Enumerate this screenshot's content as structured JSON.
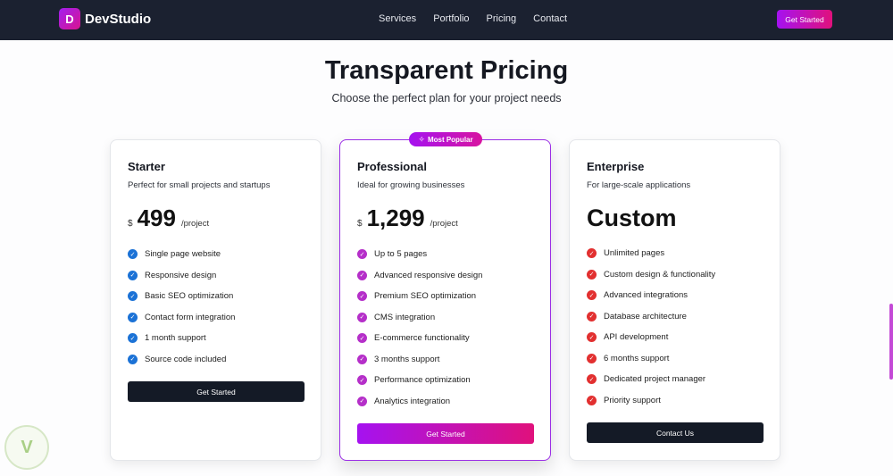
{
  "nav": {
    "logo_letter": "D",
    "brand": "DevStudio",
    "links": [
      "Services",
      "Portfolio",
      "Pricing",
      "Contact"
    ],
    "cta": "Get Started"
  },
  "hero": {
    "title": "Transparent Pricing",
    "subtitle": "Choose the perfect plan for your project needs"
  },
  "badge": "Most Popular",
  "colors": {
    "nav_bg": "#1b2130",
    "accent_start": "#a512f0",
    "accent_end": "#e0117c",
    "starter_check": "#1b72d6",
    "professional_check": "#b52fc9",
    "enterprise_check": "#e23030"
  },
  "plans": [
    {
      "name": "Starter",
      "description": "Perfect for small projects and startups",
      "currency": "$",
      "amount": "499",
      "period": "/project",
      "features": [
        "Single page website",
        "Responsive design",
        "Basic SEO optimization",
        "Contact form integration",
        "1 month support",
        "Source code included"
      ],
      "button": "Get Started"
    },
    {
      "name": "Professional",
      "description": "Ideal for growing businesses",
      "currency": "$",
      "amount": "1,299",
      "period": "/project",
      "features": [
        "Up to 5 pages",
        "Advanced responsive design",
        "Premium SEO optimization",
        "CMS integration",
        "E-commerce functionality",
        "3 months support",
        "Performance optimization",
        "Analytics integration"
      ],
      "button": "Get Started"
    },
    {
      "name": "Enterprise",
      "description": "For large-scale applications",
      "price_text": "Custom",
      "features": [
        "Unlimited pages",
        "Custom design & functionality",
        "Advanced integrations",
        "Database architecture",
        "API development",
        "6 months support",
        "Dedicated project manager",
        "Priority support"
      ],
      "button": "Contact Us"
    }
  ]
}
